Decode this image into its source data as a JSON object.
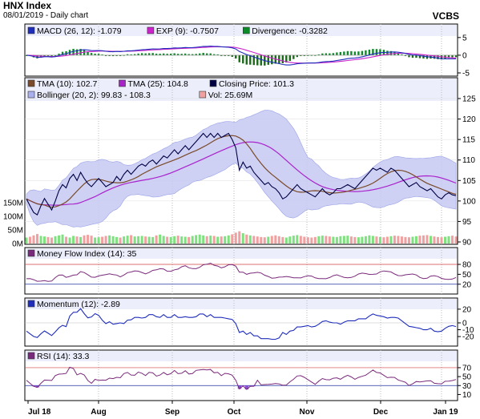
{
  "header": {
    "title": "HNX Index",
    "subtitle": "08/01/2019 - Daily chart",
    "symbol": "VCBS"
  },
  "x_labels": [
    "Jul 18",
    "Aug",
    "Sep",
    "Oct",
    "Nov",
    "Dec",
    "Jan 19"
  ],
  "colors": {
    "macd": "#1f2dbb",
    "exp": "#cc22cc",
    "divergence_pos": "#0e8a2a",
    "divergence_neg": "#1a6a1a",
    "tma10": "#7a4a2a",
    "tma25": "#aa22cc",
    "close": "#000044",
    "bollinger": "#c5c9f2",
    "vol_up": "#7fe07f",
    "vol_down": "#f0a0a0",
    "panel_bg_band": "#eceefb",
    "mfi": "#7a2a7a",
    "momentum": "#1f2dbb",
    "rsi": "#7a2a7a",
    "rsi_over": "#f06070",
    "rsi_under": "#8a55d8"
  },
  "legends": {
    "macd": [
      {
        "label": "MACD (26, 12): -1.079",
        "color": "#1f2dbb"
      },
      {
        "label": "EXP (9): -0.7507",
        "color": "#cc22cc"
      },
      {
        "label": "Divergence: -0.3282",
        "color": "#0e8a2a"
      }
    ],
    "price_row1": [
      {
        "label": "TMA (10): 102.7",
        "color": "#7a4a2a"
      },
      {
        "label": "TMA (25): 104.8",
        "color": "#aa22cc"
      },
      {
        "label": "Closing Price: 101.3",
        "color": "#000044"
      }
    ],
    "price_row2": [
      {
        "label": "Bollinger (20, 2): 99.83 - 108.3",
        "color": "#aab0ee"
      },
      {
        "label": "Vol: 25.69M",
        "color": "#f0a0a0"
      }
    ],
    "mfi": [
      {
        "label": "Money Flow Index (14): 35",
        "color": "#7a2a7a"
      }
    ],
    "momentum": [
      {
        "label": "Momentum (12): -2.89",
        "color": "#1f2dbb"
      }
    ],
    "rsi": [
      {
        "label": "RSI (14): 33.3",
        "color": "#7a2a7a"
      }
    ]
  },
  "axes": {
    "macd_ticks": [
      "5",
      "0",
      "-5"
    ],
    "price_ticks": [
      "125",
      "120",
      "115",
      "110",
      "105",
      "100",
      "95",
      "90"
    ],
    "volume_ticks": [
      "150M",
      "100M",
      "50M",
      "0M"
    ],
    "mfi_ticks": [
      "80",
      "50",
      "20"
    ],
    "momentum_ticks": [
      "20",
      "0",
      "-10",
      "-20"
    ],
    "rsi_ticks": [
      "70",
      "50",
      "30",
      "10"
    ]
  },
  "chart_data": {
    "type": "line",
    "title": "HNX Index",
    "subtitle": "08/01/2019 - Daily chart",
    "x_range": [
      "Jul 18",
      "Jan 19"
    ],
    "n_points": 120,
    "price": {
      "ylim": [
        90,
        125
      ],
      "close": [
        100.5,
        98.8,
        97.2,
        96.6,
        98.8,
        100.6,
        99.2,
        97.8,
        100.0,
        102.5,
        104.0,
        103.2,
        105.5,
        106.5,
        105.0,
        107.0,
        105.5,
        104.3,
        103.5,
        104.5,
        105.5,
        104.5,
        103.5,
        104.0,
        104.5,
        106.0,
        105.0,
        106.5,
        107.5,
        106.5,
        107.5,
        108.5,
        109.0,
        108.5,
        109.5,
        110.0,
        109.0,
        110.0,
        111.0,
        110.5,
        111.5,
        112.5,
        111.5,
        112.5,
        113.5,
        112.5,
        113.5,
        114.5,
        115.5,
        116.5,
        115.5,
        116.5,
        115.5,
        116.5,
        115.5,
        116.0,
        116.5,
        115.0,
        113.0,
        107.5,
        109.5,
        108.0,
        108.5,
        107.0,
        106.0,
        105.0,
        104.0,
        104.5,
        103.5,
        103.0,
        102.0,
        100.5,
        101.0,
        102.0,
        103.0,
        104.0,
        103.0,
        102.5,
        102.0,
        101.5,
        101.0,
        102.0,
        103.0,
        102.0,
        101.5,
        102.0,
        103.0,
        103.0,
        103.5,
        104.0,
        103.5,
        103.0,
        104.0,
        105.0,
        106.0,
        107.0,
        108.0,
        107.5,
        108.0,
        107.5,
        107.0,
        108.0,
        107.5,
        106.5,
        105.5,
        104.5,
        103.5,
        104.0,
        104.5,
        103.5,
        103.0,
        102.5,
        103.0,
        102.0,
        101.0,
        100.5,
        101.5,
        102.0,
        101.5,
        101.3
      ],
      "tma10_last": 102.7,
      "tma25_last": 104.8,
      "bollinger_last": [
        99.83,
        108.3
      ]
    },
    "volume": {
      "ylim": [
        0,
        150
      ],
      "unit": "M",
      "last": 25.69,
      "values": [
        22,
        25,
        30,
        35,
        28,
        26,
        24,
        22,
        27,
        30,
        33,
        25,
        22,
        28,
        26,
        24,
        30,
        32,
        29,
        22,
        23,
        25,
        28,
        30,
        27,
        24,
        22,
        26,
        29,
        31,
        26,
        27,
        28,
        26,
        25,
        24,
        30,
        33,
        28,
        25,
        24,
        27,
        29,
        26,
        25,
        24,
        28,
        31,
        33,
        30,
        27,
        29,
        28,
        25,
        26,
        27,
        30,
        34,
        40,
        45,
        38,
        33,
        30,
        28,
        26,
        24,
        23,
        25,
        28,
        30,
        27,
        24,
        22,
        26,
        29,
        31,
        28,
        25,
        23,
        22,
        24,
        27,
        29,
        28,
        26,
        25,
        24,
        27,
        28,
        29,
        26,
        24,
        23,
        25,
        27,
        30,
        28,
        26,
        24,
        23,
        25,
        27,
        29,
        28,
        26,
        24,
        23,
        25,
        27,
        29,
        30,
        31,
        28,
        26,
        24,
        23,
        25,
        27,
        29,
        26
      ]
    },
    "macd": {
      "ylim": [
        -5,
        7
      ],
      "macd_last": -1.079,
      "exp_last": -0.7507,
      "divergence_last": -0.3282
    },
    "mfi": {
      "ylim": [
        0,
        100
      ],
      "last": 35,
      "levels": [
        20,
        50,
        80
      ]
    },
    "momentum": {
      "ylim": [
        -25,
        25
      ],
      "last": -2.89
    },
    "rsi": {
      "ylim": [
        0,
        90
      ],
      "last": 33.3,
      "levels": [
        30,
        50,
        70
      ]
    }
  }
}
